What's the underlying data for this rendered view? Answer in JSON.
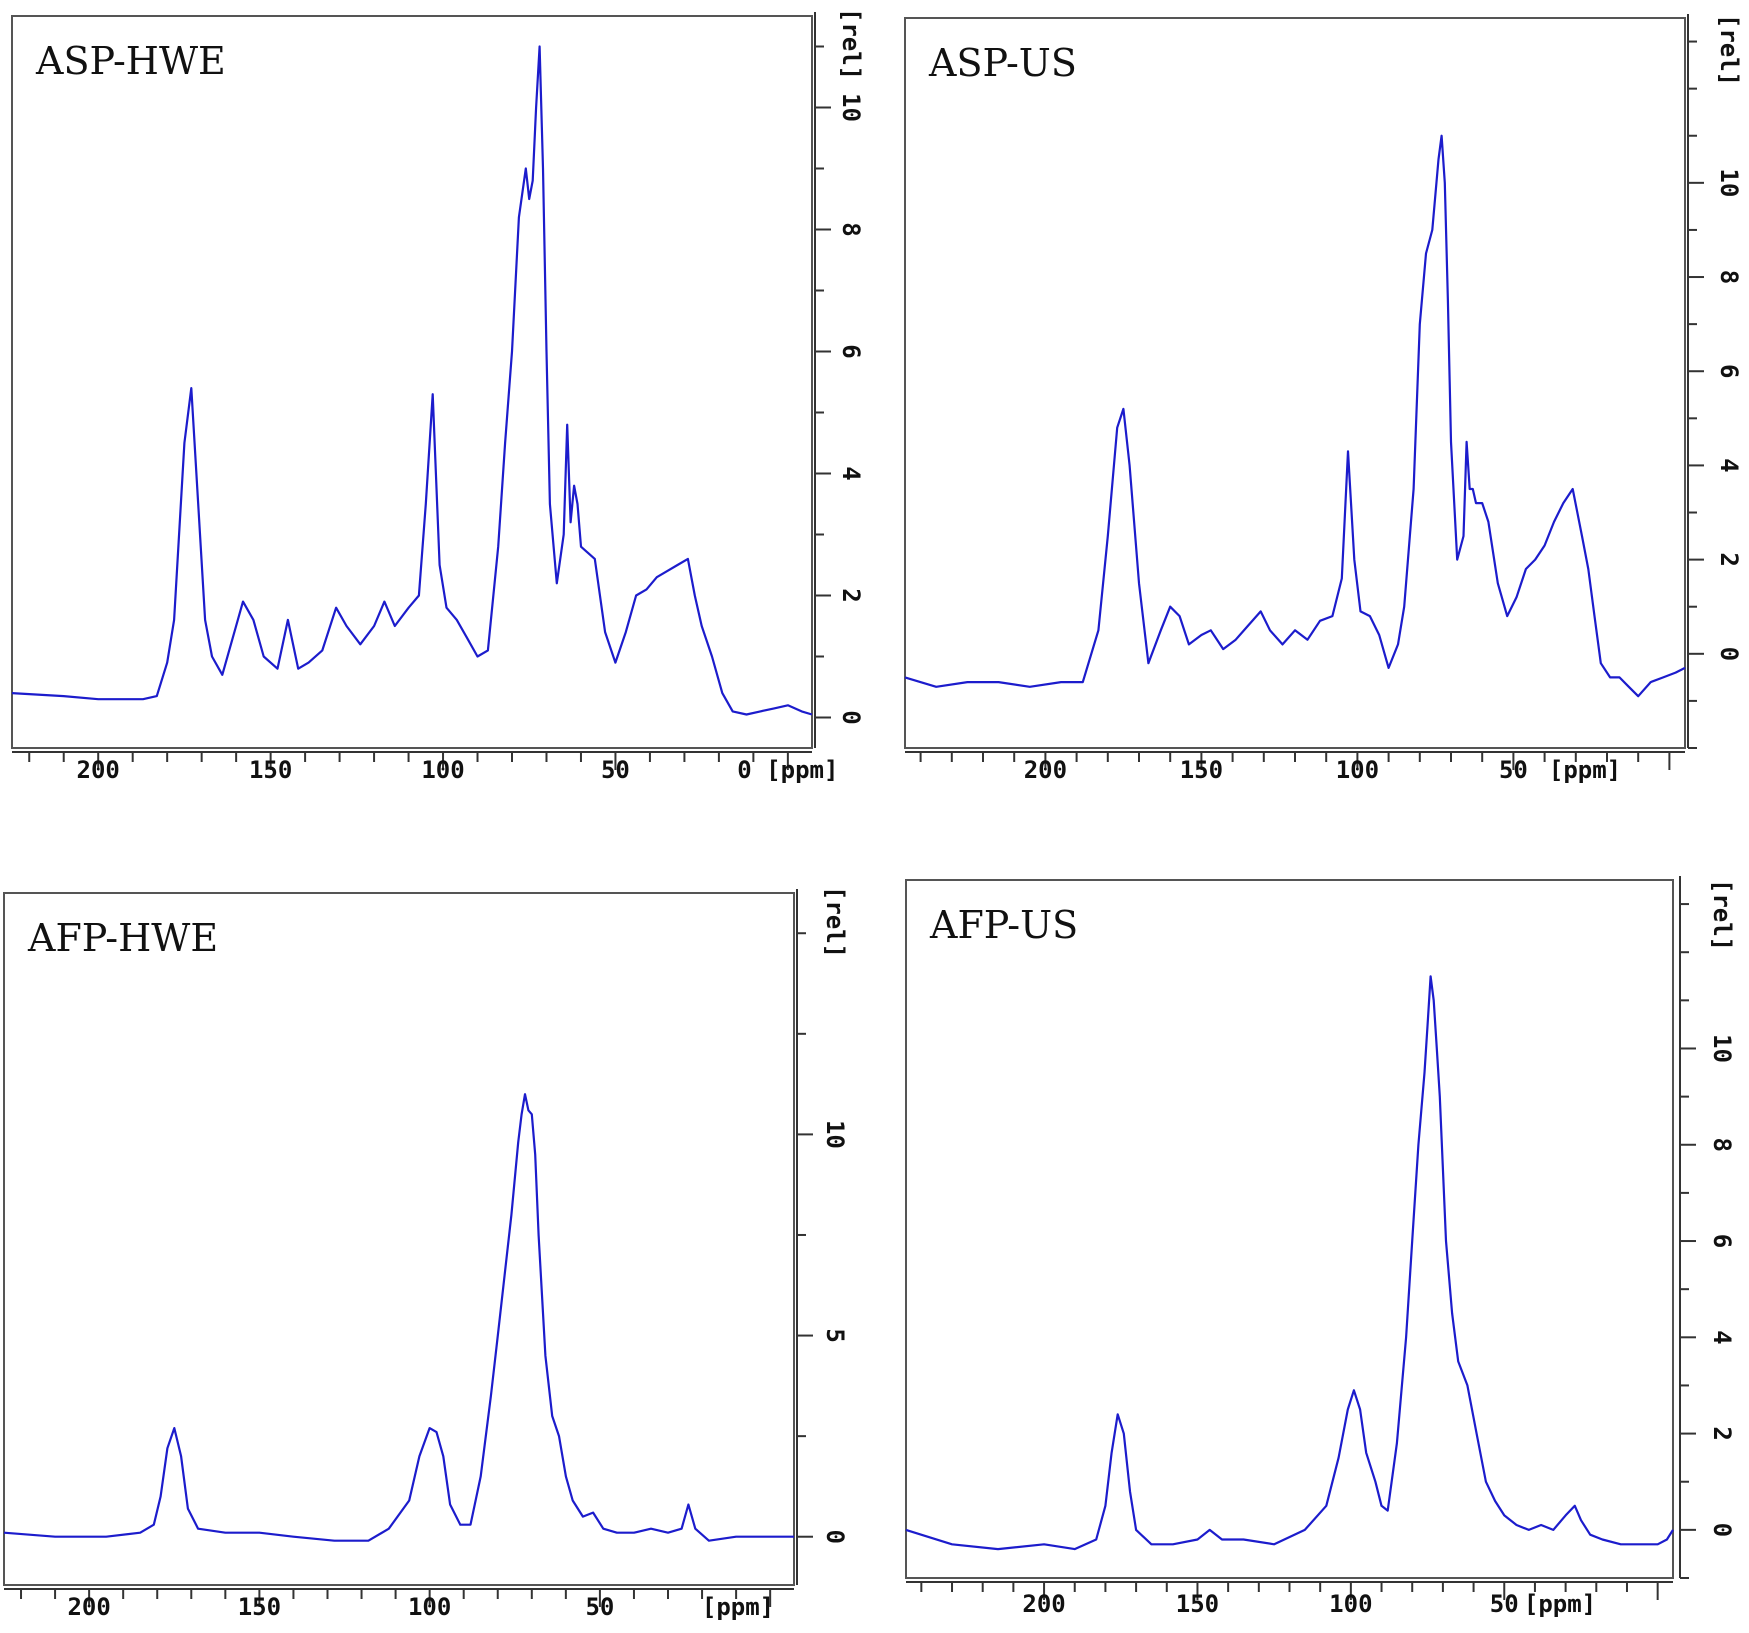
{
  "chart_data": [
    {
      "type": "line",
      "title": "ASP-HWE",
      "xlabel": "[ppm]",
      "ylabel": "[rel]",
      "xlim": [
        225,
        -7
      ],
      "ylim": [
        -0.5,
        11.5
      ],
      "x_ticks": [
        200,
        150,
        100,
        50,
        0
      ],
      "x_tick_labels": [
        "200",
        "150",
        "100",
        "50",
        "0 [ppm]"
      ],
      "y_ticks": [
        0,
        2,
        4,
        6,
        8,
        10
      ],
      "y_tick_labels": [
        "0",
        "2",
        "4",
        "6",
        "8",
        "10"
      ],
      "grid": false,
      "series": [
        {
          "x": [
            225,
            210,
            200,
            192,
            187,
            183,
            180,
            178,
            175,
            173,
            171,
            169,
            167,
            164,
            160,
            158,
            155,
            152,
            148,
            145,
            142,
            139,
            135,
            131,
            128,
            124,
            120,
            117,
            114,
            110,
            107,
            105,
            103,
            101,
            99,
            96,
            93,
            90,
            87,
            84,
            82,
            80,
            78,
            76,
            75,
            74,
            73,
            72,
            71,
            70,
            69,
            67,
            65,
            64,
            63,
            62,
            61,
            60,
            58,
            56,
            53,
            50,
            47,
            44,
            41,
            38,
            35,
            32,
            29,
            27,
            25,
            22,
            19,
            16,
            12,
            8,
            4,
            0,
            -4,
            -7
          ],
          "values": [
            0.4,
            0.35,
            0.3,
            0.3,
            0.3,
            0.35,
            0.9,
            1.6,
            4.5,
            5.4,
            3.5,
            1.6,
            1.0,
            0.7,
            1.5,
            1.9,
            1.6,
            1.0,
            0.8,
            1.6,
            0.8,
            0.9,
            1.1,
            1.8,
            1.5,
            1.2,
            1.5,
            1.9,
            1.5,
            1.8,
            2.0,
            3.5,
            5.3,
            2.5,
            1.8,
            1.6,
            1.3,
            1.0,
            1.1,
            2.8,
            4.5,
            6.0,
            8.2,
            9.0,
            8.5,
            8.8,
            10.0,
            11.0,
            9.0,
            6.0,
            3.5,
            2.2,
            3.0,
            4.8,
            3.2,
            3.8,
            3.5,
            2.8,
            2.7,
            2.6,
            1.4,
            0.9,
            1.4,
            2.0,
            2.1,
            2.3,
            2.4,
            2.5,
            2.6,
            2.0,
            1.5,
            1.0,
            0.4,
            0.1,
            0.05,
            0.1,
            0.15,
            0.2,
            0.1,
            0.05
          ]
        }
      ]
    },
    {
      "type": "line",
      "title": "ASP-US",
      "xlabel": "[ppm]",
      "ylabel": "[rel]",
      "xlim": [
        245,
        -5
      ],
      "ylim": [
        -2,
        13.5
      ],
      "x_ticks": [
        200,
        150,
        100,
        50
      ],
      "x_tick_labels": [
        "200",
        "150",
        "100",
        "50"
      ],
      "y_ticks": [
        0,
        2,
        4,
        6,
        8,
        10
      ],
      "y_tick_labels": [
        "0",
        "2",
        "4",
        "6",
        "8",
        "10"
      ],
      "grid": false,
      "series": [
        {
          "x": [
            245,
            235,
            225,
            215,
            205,
            195,
            188,
            183,
            180,
            177,
            175,
            173,
            170,
            167,
            163,
            160,
            157,
            154,
            150,
            147,
            143,
            139,
            135,
            131,
            128,
            124,
            120,
            116,
            112,
            108,
            105,
            103,
            101,
            99,
            96,
            93,
            90,
            87,
            85,
            82,
            80,
            78,
            76,
            74,
            73,
            72,
            71,
            70,
            68,
            66,
            65,
            64,
            63,
            62,
            60,
            58,
            55,
            52,
            49,
            46,
            43,
            40,
            37,
            34,
            31,
            28,
            26,
            24,
            22,
            19,
            16,
            13,
            10,
            6,
            2,
            -2,
            -5
          ],
          "values": [
            -0.5,
            -0.7,
            -0.6,
            -0.6,
            -0.7,
            -0.6,
            -0.6,
            0.5,
            2.5,
            4.8,
            5.2,
            4.0,
            1.5,
            -0.2,
            0.5,
            1.0,
            0.8,
            0.2,
            0.4,
            0.5,
            0.1,
            0.3,
            0.6,
            0.9,
            0.5,
            0.2,
            0.5,
            0.3,
            0.7,
            0.8,
            1.6,
            4.3,
            2.0,
            0.9,
            0.8,
            0.4,
            -0.3,
            0.2,
            1.0,
            3.5,
            7.0,
            8.5,
            9.0,
            10.5,
            11.0,
            10.0,
            7.5,
            4.5,
            2.0,
            2.5,
            4.5,
            3.5,
            3.5,
            3.2,
            3.2,
            2.8,
            1.5,
            0.8,
            1.2,
            1.8,
            2.0,
            2.3,
            2.8,
            3.2,
            3.5,
            2.5,
            1.8,
            0.8,
            -0.2,
            -0.5,
            -0.5,
            -0.7,
            -0.9,
            -0.6,
            -0.5,
            -0.4,
            -0.3
          ]
        }
      ]
    },
    {
      "type": "line",
      "title": "AFP-HWE",
      "xlabel": "[ppm]",
      "ylabel": "[rel]",
      "xlim": [
        225,
        -7
      ],
      "ylim": [
        -1.2,
        16
      ],
      "x_ticks": [
        200,
        150,
        100,
        50
      ],
      "x_tick_labels": [
        "200",
        "150",
        "100",
        "50"
      ],
      "y_ticks": [
        0,
        5,
        10
      ],
      "y_tick_labels": [
        "0",
        "5",
        "10"
      ],
      "grid": false,
      "series": [
        {
          "x": [
            225,
            210,
            195,
            185,
            181,
            179,
            177,
            175,
            173,
            171,
            168,
            160,
            150,
            140,
            128,
            118,
            112,
            106,
            103,
            100,
            98,
            96,
            94,
            91,
            88,
            85,
            82,
            80,
            78,
            76,
            74,
            73,
            72,
            71,
            70,
            69,
            68,
            66,
            64,
            62,
            60,
            58,
            55,
            52,
            49,
            45,
            40,
            35,
            30,
            26,
            24,
            22,
            18,
            10,
            0,
            -7
          ],
          "values": [
            0.1,
            0.0,
            0.0,
            0.1,
            0.3,
            1.0,
            2.2,
            2.7,
            2.0,
            0.7,
            0.2,
            0.1,
            0.1,
            0.0,
            -0.1,
            -0.1,
            0.2,
            0.9,
            2.0,
            2.7,
            2.6,
            2.0,
            0.8,
            0.3,
            0.3,
            1.5,
            3.5,
            5.0,
            6.5,
            8.0,
            9.8,
            10.5,
            11.0,
            10.6,
            10.5,
            9.5,
            7.5,
            4.5,
            3.0,
            2.5,
            1.5,
            0.9,
            0.5,
            0.6,
            0.2,
            0.1,
            0.1,
            0.2,
            0.1,
            0.2,
            0.8,
            0.2,
            -0.1,
            0.0,
            0.0,
            0.0
          ]
        }
      ]
    },
    {
      "type": "line",
      "title": "AFP-US",
      "xlabel": "[ppm]",
      "ylabel": "[rel]",
      "xlim": [
        245,
        -5
      ],
      "ylim": [
        -1,
        13.5
      ],
      "x_ticks": [
        200,
        150,
        100,
        50
      ],
      "x_tick_labels": [
        "200",
        "150",
        "100",
        "50"
      ],
      "y_ticks": [
        0,
        2,
        4,
        6,
        8,
        10
      ],
      "y_tick_labels": [
        "0",
        "2",
        "4",
        "6",
        "8",
        "10"
      ],
      "grid": false,
      "series": [
        {
          "x": [
            245,
            230,
            215,
            200,
            190,
            183,
            180,
            178,
            176,
            174,
            172,
            170,
            165,
            158,
            150,
            146,
            142,
            135,
            125,
            115,
            108,
            104,
            101,
            99,
            97,
            95,
            92,
            90,
            88,
            85,
            82,
            80,
            78,
            76,
            75,
            74,
            73,
            72,
            71,
            70,
            69,
            67,
            65,
            62,
            59,
            56,
            53,
            50,
            46,
            42,
            38,
            34,
            30,
            27,
            25,
            22,
            18,
            12,
            5,
            0,
            -3,
            -5
          ],
          "values": [
            0.0,
            -0.3,
            -0.4,
            -0.3,
            -0.4,
            -0.2,
            0.5,
            1.6,
            2.4,
            2.0,
            0.8,
            0.0,
            -0.3,
            -0.3,
            -0.2,
            0.0,
            -0.2,
            -0.2,
            -0.3,
            0.0,
            0.5,
            1.5,
            2.5,
            2.9,
            2.5,
            1.6,
            1.0,
            0.5,
            0.4,
            1.8,
            4.0,
            6.0,
            8.0,
            9.5,
            10.5,
            11.5,
            11.0,
            10.0,
            9.0,
            7.5,
            6.0,
            4.5,
            3.5,
            3.0,
            2.0,
            1.0,
            0.6,
            0.3,
            0.1,
            0.0,
            0.1,
            0.0,
            0.3,
            0.5,
            0.2,
            -0.1,
            -0.2,
            -0.3,
            -0.3,
            -0.3,
            -0.2,
            0.0
          ]
        }
      ]
    }
  ]
}
